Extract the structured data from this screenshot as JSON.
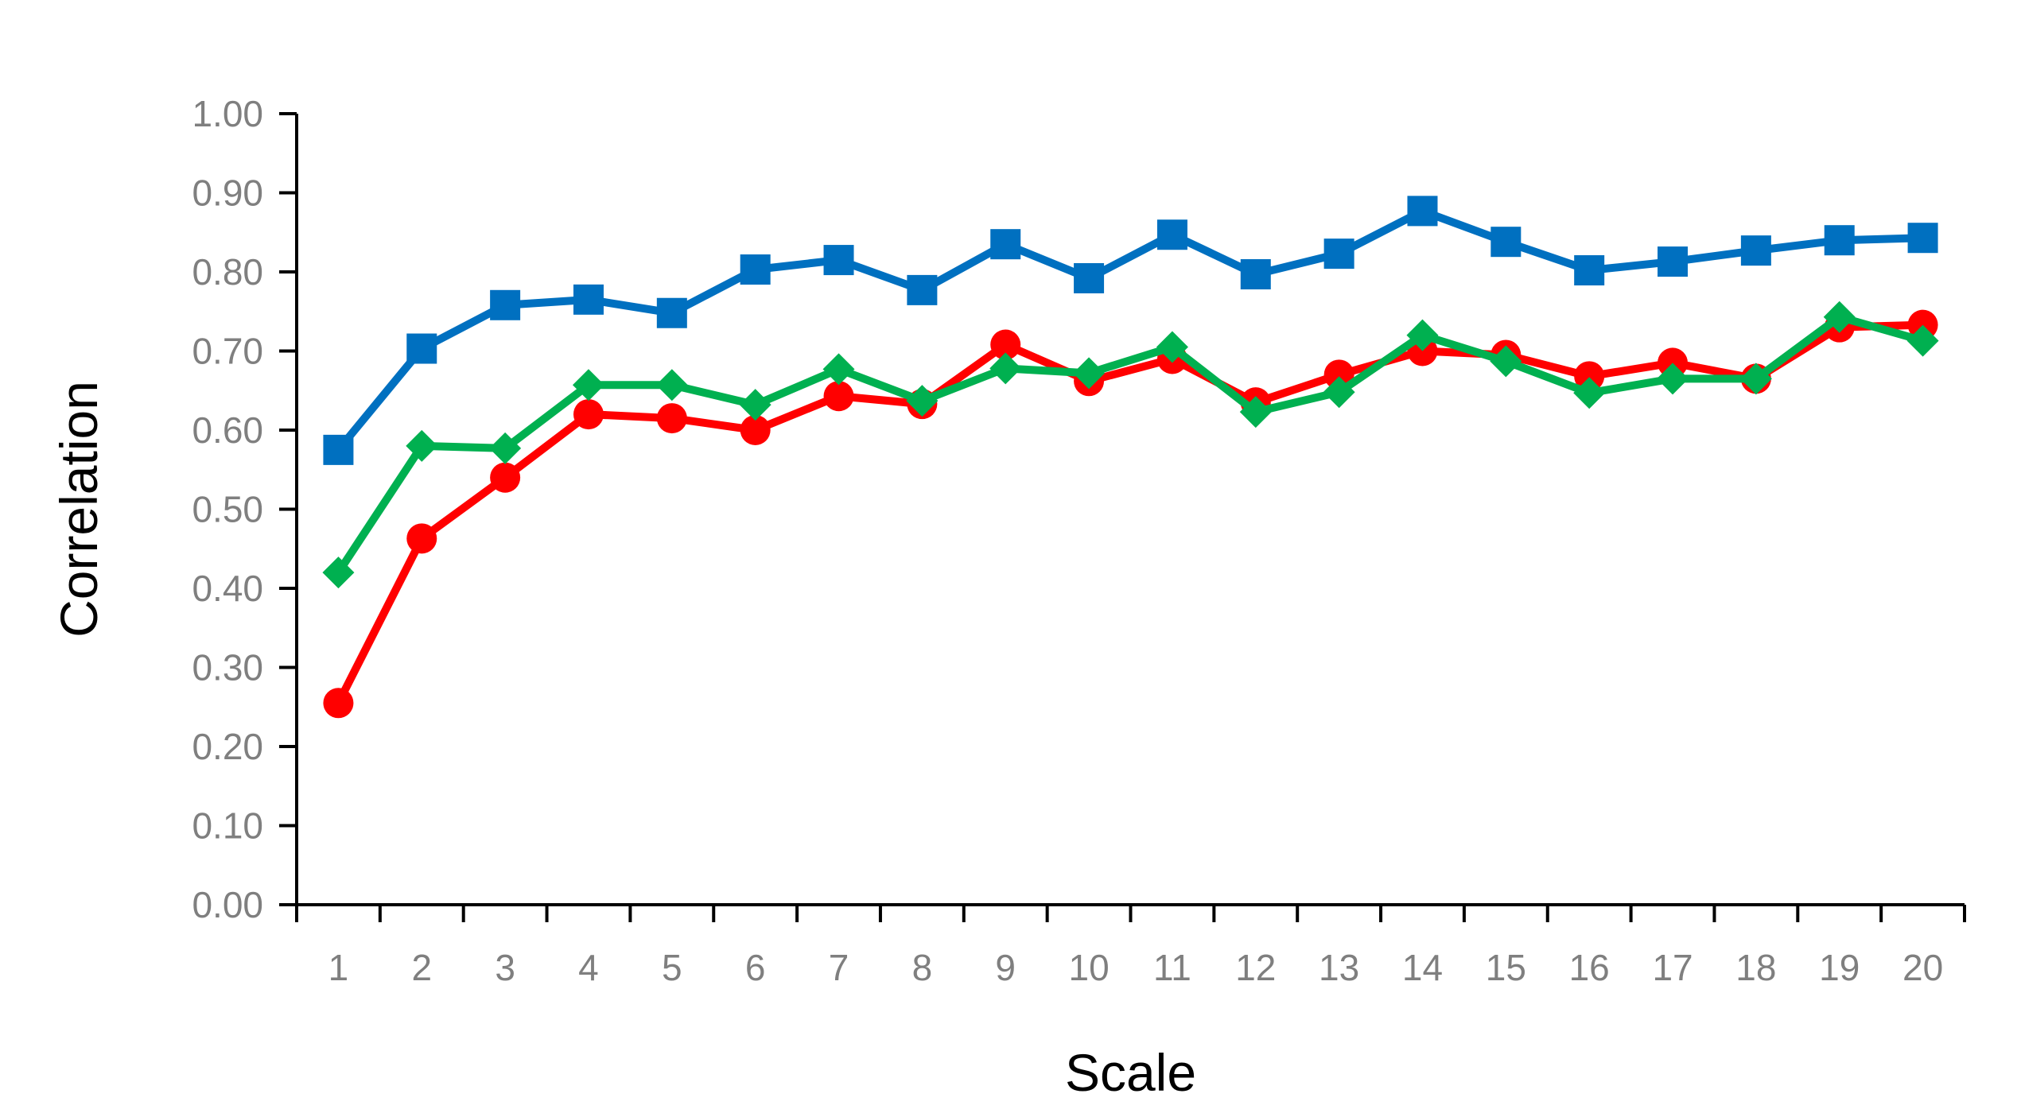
{
  "chart_data": {
    "type": "line",
    "title": "",
    "xlabel": "Scale",
    "ylabel": "Correlation",
    "categories": [
      "1",
      "2",
      "3",
      "4",
      "5",
      "6",
      "7",
      "8",
      "9",
      "10",
      "11",
      "12",
      "13",
      "14",
      "15",
      "16",
      "17",
      "18",
      "19",
      "20"
    ],
    "ylim": [
      0,
      1
    ],
    "yticks": [
      "0.00",
      "0.10",
      "0.20",
      "0.30",
      "0.40",
      "0.50",
      "0.60",
      "0.70",
      "0.80",
      "0.90",
      "1.00"
    ],
    "grid": false,
    "legend": "none",
    "series": [
      {
        "color": "#0070c0",
        "marker": "square",
        "values": [
          0.575,
          0.703,
          0.758,
          0.765,
          0.748,
          0.803,
          0.815,
          0.777,
          0.835,
          0.792,
          0.847,
          0.797,
          0.823,
          0.877,
          0.838,
          0.802,
          0.813,
          0.827,
          0.84,
          0.843
        ]
      },
      {
        "color": "#ff0000",
        "marker": "circle",
        "values": [
          0.255,
          0.463,
          0.54,
          0.62,
          0.615,
          0.6,
          0.643,
          0.633,
          0.708,
          0.662,
          0.69,
          0.635,
          0.67,
          0.7,
          0.695,
          0.668,
          0.685,
          0.665,
          0.73,
          0.733
        ]
      },
      {
        "color": "#00b050",
        "marker": "diamond",
        "values": [
          0.42,
          0.58,
          0.577,
          0.657,
          0.657,
          0.632,
          0.677,
          0.637,
          0.678,
          0.672,
          0.705,
          0.623,
          0.648,
          0.72,
          0.687,
          0.647,
          0.665,
          0.665,
          0.743,
          0.713
        ]
      }
    ]
  }
}
